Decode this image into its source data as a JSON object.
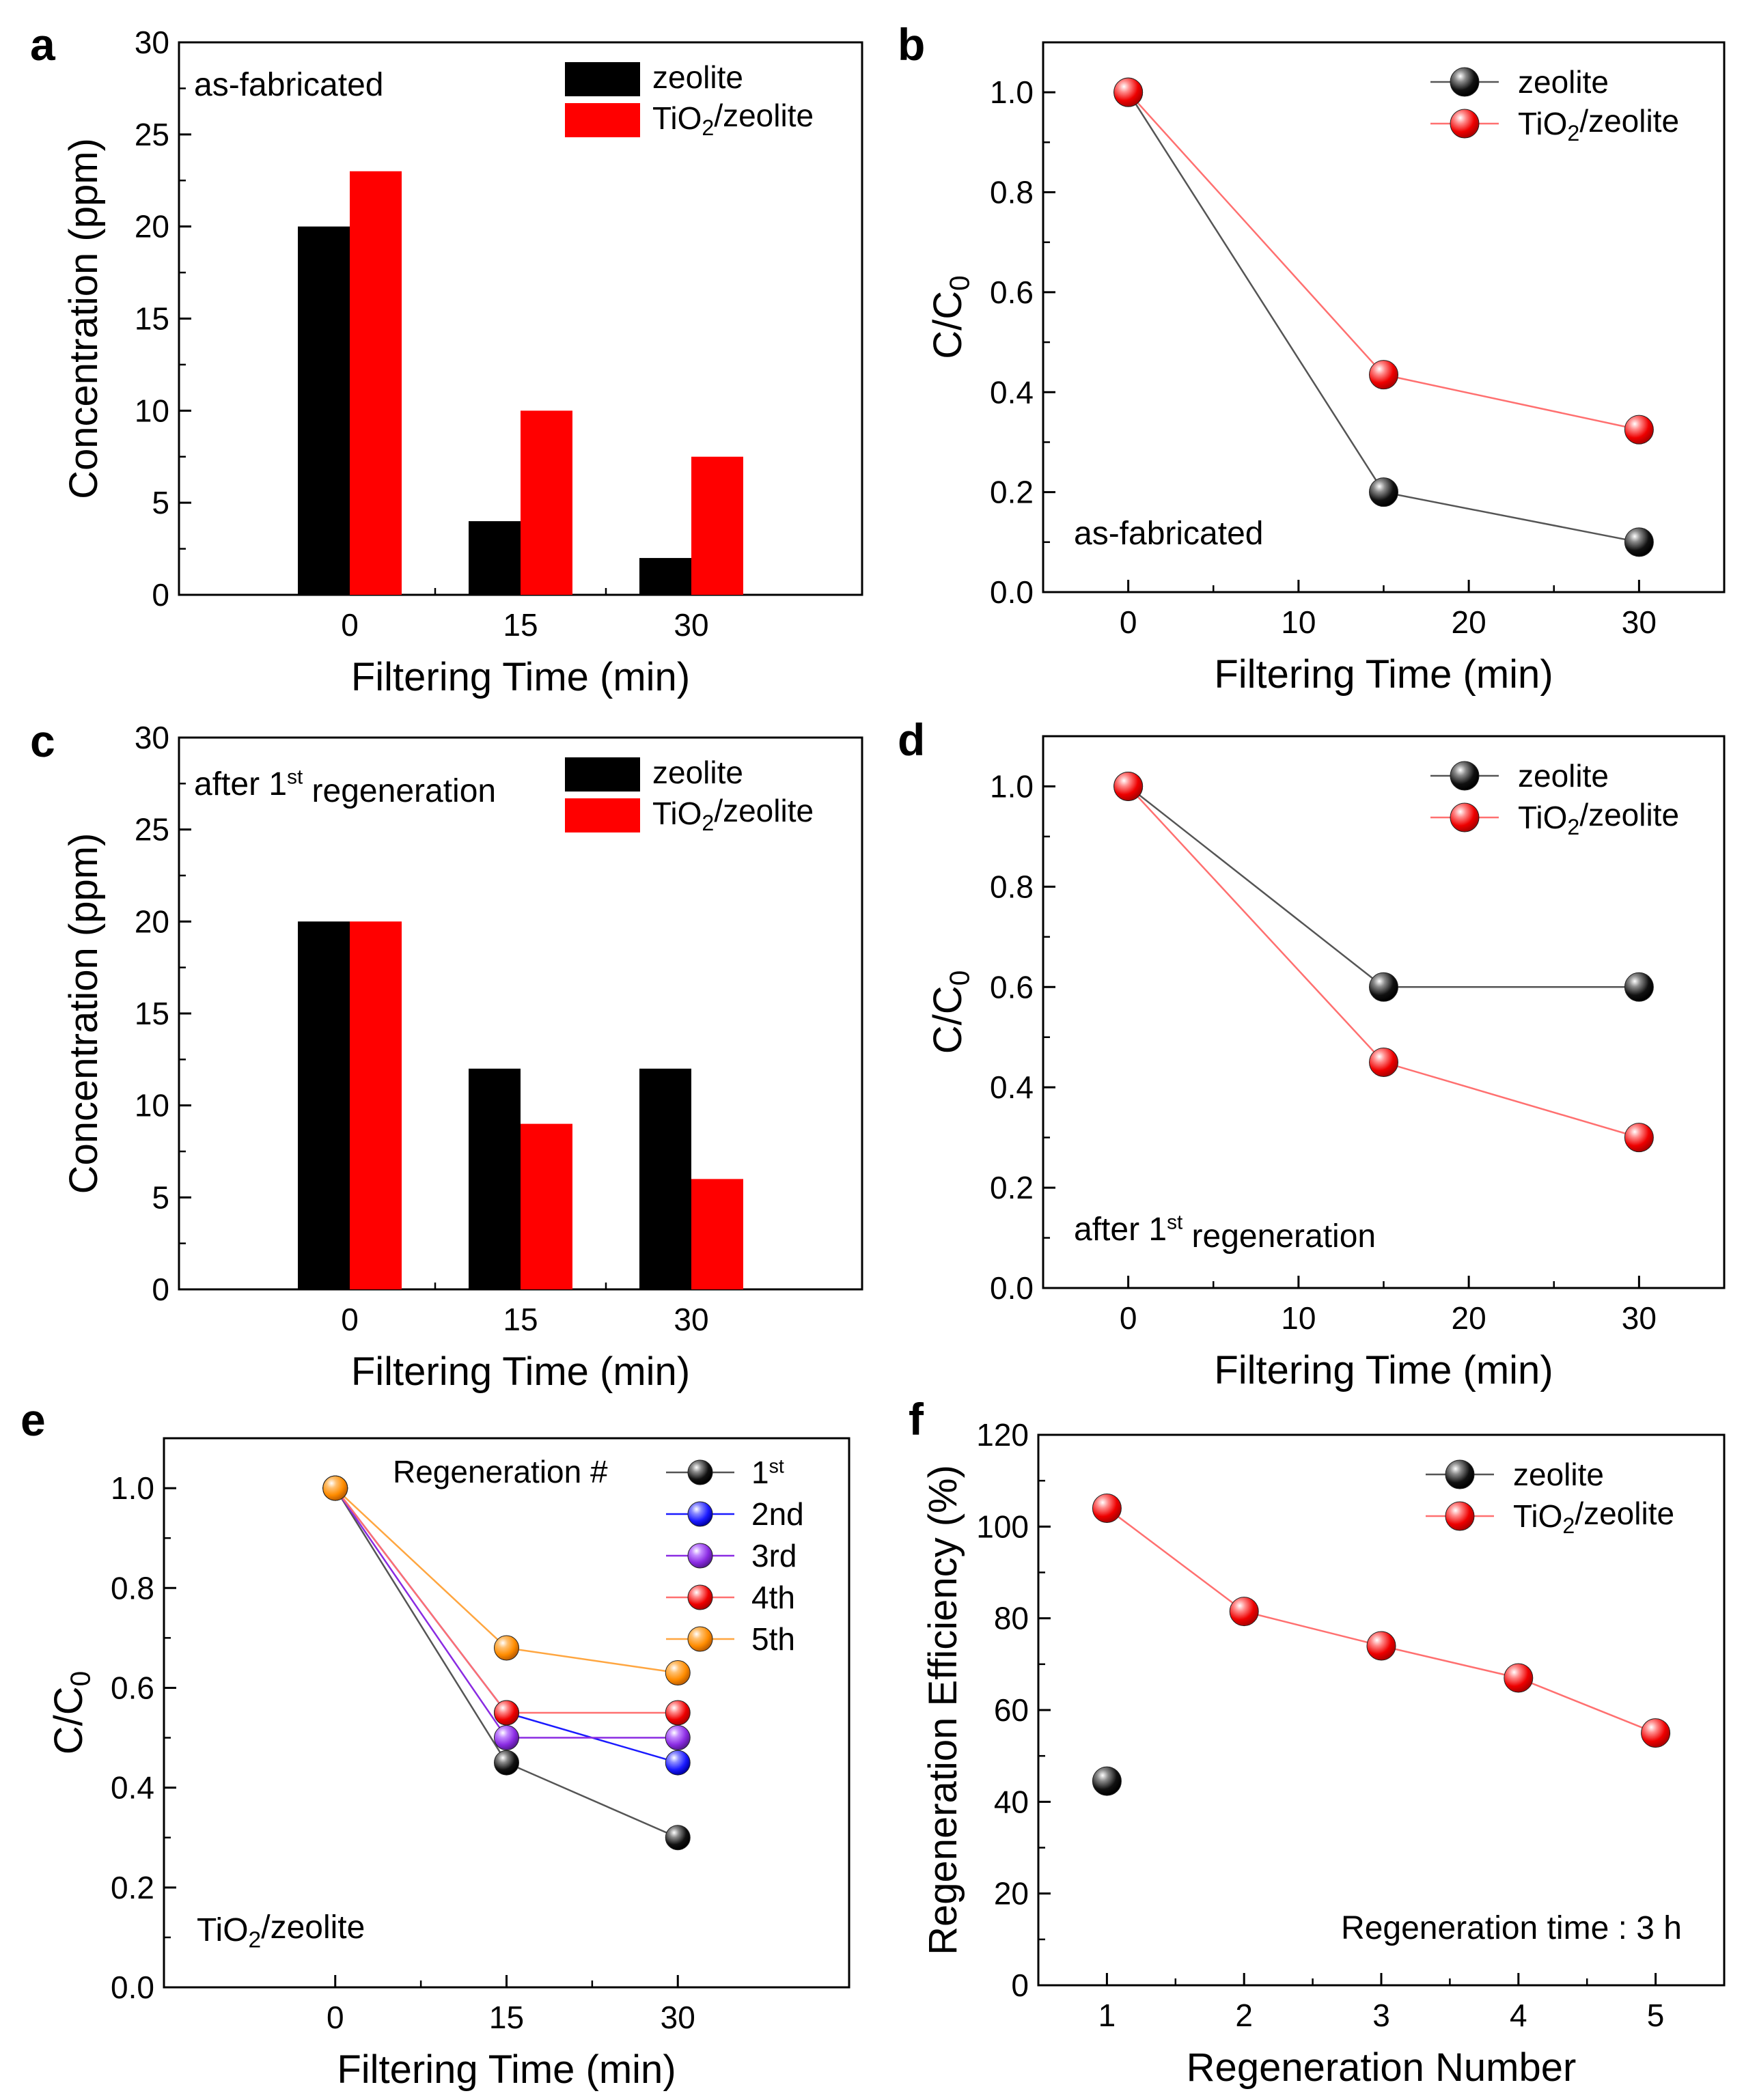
{
  "figure": {
    "colors": {
      "zeolite": "#000000",
      "tio2_zeolite": "#ff0000",
      "reg_1st": "#000000",
      "reg_2nd": "#1a1aff",
      "reg_3rd": "#8a2be2",
      "reg_4th": "#ff0000",
      "reg_5th": "#ff8c00",
      "line_zeolite": "#555555",
      "line_tio2": "#ff7070"
    }
  },
  "chart_data": [
    {
      "panel": "a",
      "type": "bar",
      "annotation": "as-fabricated",
      "xlabel": "Filtering Time (min)",
      "ylabel": "Concentration (ppm)",
      "categories": [
        "0",
        "15",
        "30"
      ],
      "ylim": [
        0,
        30
      ],
      "yticks": [
        "0",
        "5",
        "10",
        "15",
        "20",
        "25",
        "30"
      ],
      "series": [
        {
          "name": "zeolite",
          "values": [
            20,
            4,
            2
          ]
        },
        {
          "name": "TiO₂/zeolite",
          "values": [
            23,
            10,
            7.5
          ]
        }
      ],
      "legend": "top-right"
    },
    {
      "panel": "b",
      "type": "line",
      "annotation": "as-fabricated",
      "xlabel": "Filtering Time (min)",
      "ylabel": "C/C₀",
      "xlim": [
        -5,
        35
      ],
      "ylim": [
        0,
        1.1
      ],
      "xticks": [
        "0",
        "10",
        "20",
        "30"
      ],
      "yticks": [
        "0.0",
        "0.2",
        "0.4",
        "0.6",
        "0.8",
        "1.0"
      ],
      "x": [
        0,
        15,
        30
      ],
      "series": [
        {
          "name": "zeolite",
          "values": [
            1.0,
            0.2,
            0.1
          ]
        },
        {
          "name": "TiO₂/zeolite",
          "values": [
            1.0,
            0.435,
            0.325
          ]
        }
      ],
      "legend": "top-right"
    },
    {
      "panel": "c",
      "type": "bar",
      "annotation": "after 1st regeneration",
      "xlabel": "Filtering Time (min)",
      "ylabel": "Concentration (ppm)",
      "categories": [
        "0",
        "15",
        "30"
      ],
      "ylim": [
        0,
        30
      ],
      "yticks": [
        "0",
        "5",
        "10",
        "15",
        "20",
        "25",
        "30"
      ],
      "series": [
        {
          "name": "zeolite",
          "values": [
            20,
            12,
            12
          ]
        },
        {
          "name": "TiO₂/zeolite",
          "values": [
            20,
            9,
            6
          ]
        }
      ],
      "legend": "top-right"
    },
    {
      "panel": "d",
      "type": "line",
      "annotation": "after 1st regeneration",
      "xlabel": "Filtering Time (min)",
      "ylabel": "C/C₀",
      "xlim": [
        -5,
        35
      ],
      "ylim": [
        0,
        1.1
      ],
      "xticks": [
        "0",
        "10",
        "20",
        "30"
      ],
      "yticks": [
        "0.0",
        "0.2",
        "0.4",
        "0.6",
        "0.8",
        "1.0"
      ],
      "x": [
        0,
        15,
        30
      ],
      "series": [
        {
          "name": "zeolite",
          "values": [
            1.0,
            0.6,
            0.6
          ]
        },
        {
          "name": "TiO₂/zeolite",
          "values": [
            1.0,
            0.45,
            0.3
          ]
        }
      ],
      "legend": "top-right"
    },
    {
      "panel": "e",
      "type": "line",
      "annotation": "TiO₂/zeolite",
      "legend_title": "Regeneration #",
      "xlabel": "Filtering Time (min)",
      "ylabel": "C/C₀",
      "categories": [
        "0",
        "15",
        "30"
      ],
      "ylim": [
        0,
        1.1
      ],
      "yticks": [
        "0.0",
        "0.2",
        "0.4",
        "0.6",
        "0.8",
        "1.0"
      ],
      "series": [
        {
          "name": "1st",
          "values": [
            1.0,
            0.45,
            0.3
          ]
        },
        {
          "name": "2nd",
          "values": [
            1.0,
            0.55,
            0.45
          ]
        },
        {
          "name": "3rd",
          "values": [
            1.0,
            0.5,
            0.5
          ]
        },
        {
          "name": "4th",
          "values": [
            1.0,
            0.55,
            0.55
          ]
        },
        {
          "name": "5th",
          "values": [
            1.0,
            0.68,
            0.63
          ]
        }
      ],
      "legend": "top-right"
    },
    {
      "panel": "f",
      "type": "scatter",
      "annotation": "Regeneration time : 3 h",
      "xlabel": "Regeneration Number",
      "ylabel": "Regeneration Efficiency (%)",
      "xlim": [
        0.5,
        5.5
      ],
      "ylim": [
        0,
        120
      ],
      "xticks": [
        "1",
        "2",
        "3",
        "4",
        "5"
      ],
      "yticks": [
        "0",
        "20",
        "40",
        "60",
        "80",
        "100",
        "120"
      ],
      "series": [
        {
          "name": "zeolite",
          "x": [
            1
          ],
          "values": [
            44.5
          ]
        },
        {
          "name": "TiO₂/zeolite",
          "x": [
            1,
            2,
            3,
            4,
            5
          ],
          "values": [
            104,
            81.5,
            74,
            67,
            55
          ]
        }
      ],
      "legend": "top-right"
    }
  ]
}
